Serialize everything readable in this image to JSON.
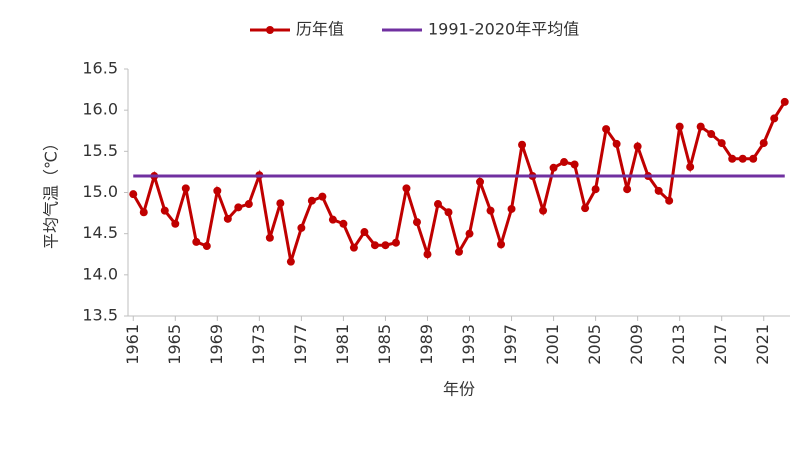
{
  "chart_data": {
    "type": "line",
    "x": [
      1961,
      1962,
      1963,
      1964,
      1965,
      1966,
      1967,
      1968,
      1969,
      1970,
      1971,
      1972,
      1973,
      1974,
      1975,
      1976,
      1977,
      1978,
      1979,
      1980,
      1981,
      1982,
      1983,
      1984,
      1985,
      1986,
      1987,
      1988,
      1989,
      1990,
      1991,
      1992,
      1993,
      1994,
      1995,
      1996,
      1997,
      1998,
      1999,
      2000,
      2001,
      2002,
      2003,
      2004,
      2005,
      2006,
      2007,
      2008,
      2009,
      2010,
      2011,
      2012,
      2013,
      2014,
      2015,
      2016,
      2017,
      2018,
      2019,
      2020,
      2021,
      2022,
      2023
    ],
    "series": [
      {
        "name": "历年值",
        "color": "#c00000",
        "markers": true,
        "values": [
          14.98,
          14.76,
          15.2,
          14.78,
          14.62,
          15.05,
          14.4,
          14.35,
          15.02,
          14.68,
          14.82,
          14.86,
          15.21,
          14.45,
          14.87,
          14.16,
          14.57,
          14.9,
          14.95,
          14.67,
          14.62,
          14.33,
          14.52,
          14.36,
          14.36,
          14.39,
          15.05,
          14.64,
          14.25,
          14.86,
          14.76,
          14.28,
          14.5,
          15.13,
          14.78,
          14.37,
          14.8,
          15.58,
          15.2,
          14.78,
          15.3,
          15.37,
          15.34,
          14.81,
          15.04,
          15.77,
          15.59,
          15.04,
          15.56,
          15.2,
          15.02,
          14.9,
          15.8,
          15.31,
          15.8,
          15.71,
          15.6,
          15.41,
          15.41,
          15.41,
          15.6,
          15.9,
          16.1
        ]
      },
      {
        "name": "1991-2020年平均值",
        "color": "#7030a0",
        "markers": false,
        "values": [
          15.2,
          15.2,
          15.2,
          15.2,
          15.2,
          15.2,
          15.2,
          15.2,
          15.2,
          15.2,
          15.2,
          15.2,
          15.2,
          15.2,
          15.2,
          15.2,
          15.2,
          15.2,
          15.2,
          15.2,
          15.2,
          15.2,
          15.2,
          15.2,
          15.2,
          15.2,
          15.2,
          15.2,
          15.2,
          15.2,
          15.2,
          15.2,
          15.2,
          15.2,
          15.2,
          15.2,
          15.2,
          15.2,
          15.2,
          15.2,
          15.2,
          15.2,
          15.2,
          15.2,
          15.2,
          15.2,
          15.2,
          15.2,
          15.2,
          15.2,
          15.2,
          15.2,
          15.2,
          15.2,
          15.2,
          15.2,
          15.2,
          15.2,
          15.2,
          15.2,
          15.2,
          15.2,
          15.2
        ]
      }
    ],
    "xlabel": "年份",
    "ylabel": "平均气温（℃）",
    "xlim": [
      1960.5,
      2023.5
    ],
    "xticks": [
      1961,
      1965,
      1969,
      1973,
      1977,
      1981,
      1985,
      1989,
      1993,
      1997,
      2001,
      2005,
      2009,
      2013,
      2017,
      2021
    ],
    "ylim": [
      13.5,
      16.5
    ],
    "yticks": [
      13.5,
      {
        "value": 14,
        "label": "14.0"
      },
      14.5,
      {
        "value": 15,
        "label": "15.0"
      },
      15.5,
      {
        "value": 16,
        "label": "16.0"
      },
      16.5
    ],
    "grid": false
  }
}
